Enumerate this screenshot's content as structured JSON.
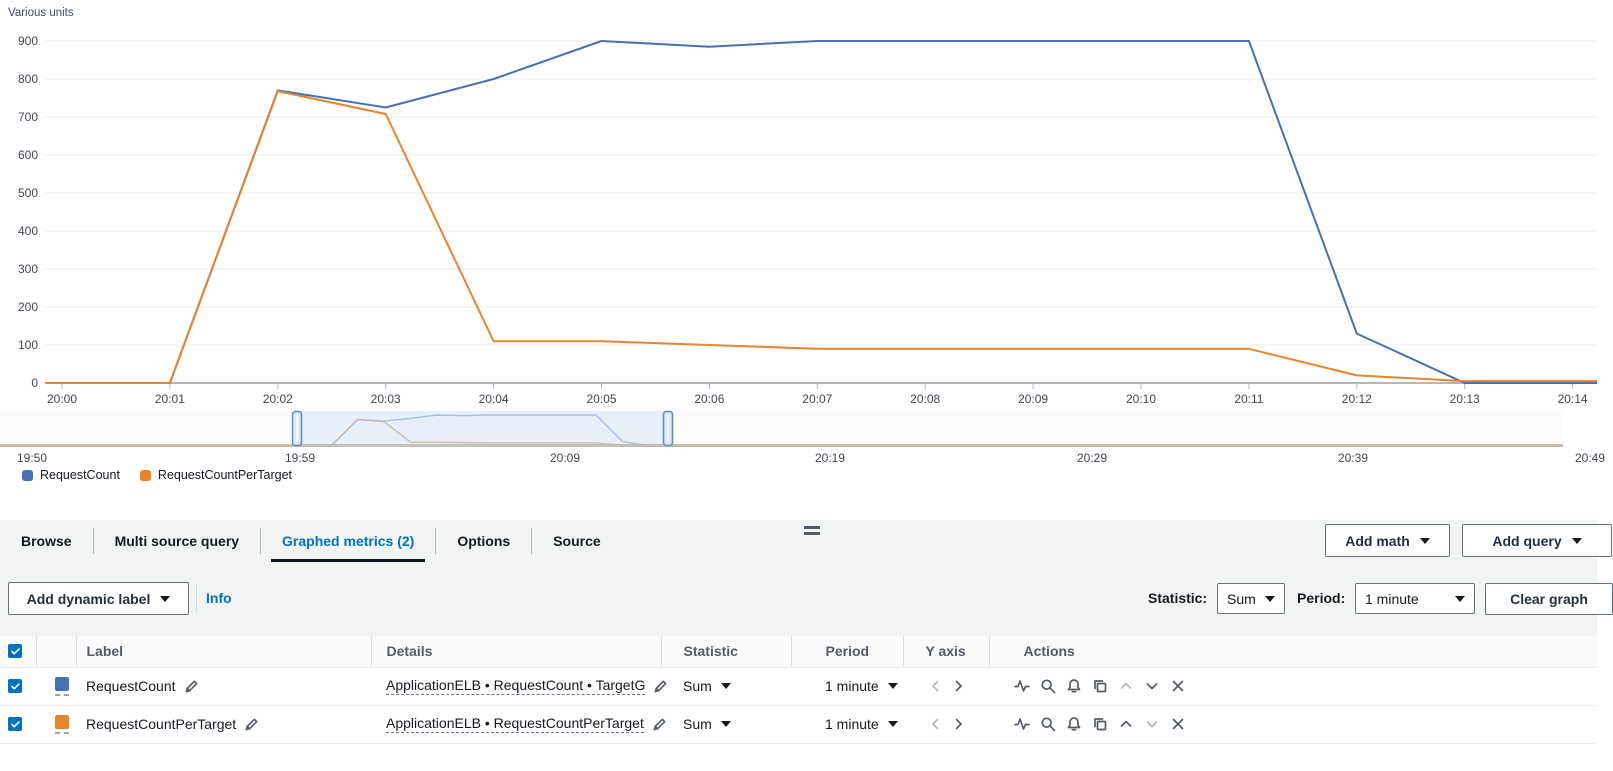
{
  "chart": {
    "units_label": "Various units",
    "legend": [
      {
        "label": "RequestCount",
        "color": "#4672b2"
      },
      {
        "label": "RequestCountPerTarget",
        "color": "#e8842c"
      }
    ]
  },
  "chart_data": {
    "type": "line",
    "title": "",
    "ylabel": "Various units",
    "ylim": [
      0,
      900
    ],
    "yticks": [
      0,
      100,
      200,
      300,
      400,
      500,
      600,
      700,
      800,
      900
    ],
    "grid": true,
    "legend_position": "bottom-left",
    "categories": [
      "20:00",
      "20:01",
      "20:02",
      "20:03",
      "20:04",
      "20:05",
      "20:06",
      "20:07",
      "20:08",
      "20:09",
      "20:10",
      "20:11",
      "20:12",
      "20:13",
      "20:14"
    ],
    "series": [
      {
        "name": "RequestCount",
        "color": "#4672b2",
        "values": [
          0,
          0,
          770,
          725,
          800,
          900,
          885,
          900,
          900,
          900,
          900,
          900,
          130,
          0,
          0
        ]
      },
      {
        "name": "RequestCountPerTarget",
        "color": "#e8842c",
        "values": [
          0,
          0,
          768,
          708,
          110,
          110,
          100,
          90,
          90,
          90,
          90,
          90,
          20,
          5,
          5
        ]
      }
    ],
    "minimap": {
      "labels": [
        "19:50",
        "19:59",
        "20:09",
        "20:19",
        "20:29",
        "20:39",
        "20:49"
      ]
    }
  },
  "tabs": {
    "items": [
      "Browse",
      "Multi source query",
      "Graphed metrics (2)",
      "Options",
      "Source"
    ],
    "active": "Graphed metrics (2)"
  },
  "toolbar": {
    "add_math": "Add math",
    "add_query": "Add query"
  },
  "controls": {
    "add_dynamic_label": "Add dynamic label",
    "info": "Info",
    "statistic_label": "Statistic:",
    "statistic_value": "Sum",
    "period_label": "Period:",
    "period_value": "1 minute",
    "clear_graph": "Clear graph"
  },
  "table": {
    "headers": {
      "label": "Label",
      "details": "Details",
      "statistic": "Statistic",
      "period": "Period",
      "y_axis": "Y axis",
      "actions": "Actions"
    },
    "rows": [
      {
        "label": "RequestCount",
        "color": "#4672b2",
        "details": "ApplicationELB • RequestCount • TargetG",
        "statistic": "Sum",
        "period": "1 minute"
      },
      {
        "label": "RequestCountPerTarget",
        "color": "#e8842c",
        "details": "ApplicationELB • RequestCountPerTarget",
        "statistic": "Sum",
        "period": "1 minute"
      }
    ]
  }
}
